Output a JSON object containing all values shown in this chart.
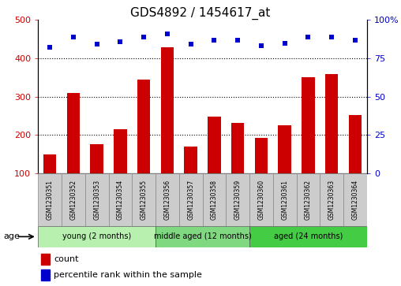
{
  "title": "GDS4892 / 1454617_at",
  "samples": [
    "GSM1230351",
    "GSM1230352",
    "GSM1230353",
    "GSM1230354",
    "GSM1230355",
    "GSM1230356",
    "GSM1230357",
    "GSM1230358",
    "GSM1230359",
    "GSM1230360",
    "GSM1230361",
    "GSM1230362",
    "GSM1230363",
    "GSM1230364"
  ],
  "counts": [
    148,
    310,
    175,
    215,
    345,
    428,
    170,
    247,
    232,
    192,
    225,
    350,
    358,
    252
  ],
  "percentiles": [
    82,
    89,
    84,
    86,
    89,
    91,
    84,
    87,
    87,
    83,
    85,
    89,
    89,
    87
  ],
  "groups": [
    {
      "label": "young (2 months)",
      "start": 0,
      "end": 5,
      "color": "#B8F0B0"
    },
    {
      "label": "middle aged (12 months)",
      "start": 5,
      "end": 9,
      "color": "#80D880"
    },
    {
      "label": "aged (24 months)",
      "start": 9,
      "end": 14,
      "color": "#44CC44"
    }
  ],
  "ylim_left": [
    100,
    500
  ],
  "ylim_right": [
    0,
    100
  ],
  "yticks_left": [
    100,
    200,
    300,
    400,
    500
  ],
  "yticks_right": [
    0,
    25,
    50,
    75,
    100
  ],
  "bar_color": "#CC0000",
  "dot_color": "#0000CC",
  "bg_color": "#FFFFFF",
  "grid_color": "#000000",
  "left_axis_color": "#CC0000",
  "right_axis_color": "#0000CC",
  "age_label": "age",
  "label_box_color": "#CCCCCC",
  "title_fontsize": 11,
  "axis_fontsize": 8,
  "sample_fontsize": 5.5,
  "group_fontsize": 7,
  "legend_fontsize": 8
}
